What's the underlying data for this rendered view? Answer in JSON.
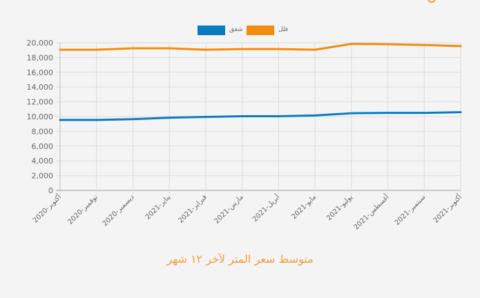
{
  "chart_data": {
    "type": "line",
    "categories": [
      "أكتوبر-2020",
      "نوفمبر-2020",
      "ديسمبر-2020",
      "يناير-2021",
      "فبراير-2021",
      "مارس-2021",
      "أبريل-2021",
      "مايو-2021",
      "يوليو-2021",
      "أغسطس-2021",
      "سبتمبر-2021",
      "أكتوبر-2021"
    ],
    "series": [
      {
        "name": "فلل",
        "color": "#f28c10",
        "values": [
          19050,
          19050,
          19250,
          19250,
          19050,
          19150,
          19150,
          19050,
          19850,
          19800,
          19700,
          19550
        ]
      },
      {
        "name": "شقق",
        "color": "#0a7bc0",
        "values": [
          9550,
          9550,
          9650,
          9850,
          9950,
          10050,
          10050,
          10150,
          10450,
          10500,
          10500,
          10600
        ]
      }
    ],
    "y_ticks": [
      "0",
      "2,000",
      "4,000",
      "6,000",
      "8,000",
      "10,000",
      "12,000",
      "14,000",
      "16,000",
      "18,000",
      "20,000"
    ],
    "ylim": [
      0,
      20000
    ],
    "grid": true,
    "legend_position": "top"
  },
  "caption": "متوسط سعر المتر لآخر ١٢ شهر"
}
